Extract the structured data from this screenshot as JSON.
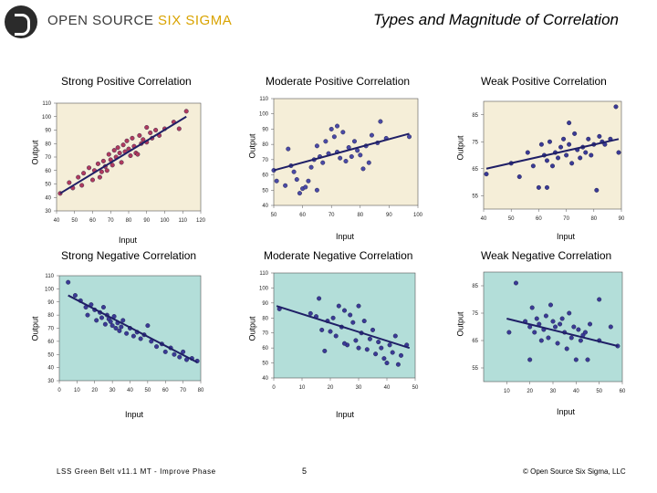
{
  "header": {
    "logo_text": "OPEN SOURCE",
    "logo_text_highlight": "SIX SIGMA",
    "slide_title": "Types and Magnitude of Correlation"
  },
  "footer": {
    "left": "LSS Green Belt v11.1 MT - Improve Phase",
    "page": "5",
    "right": "© Open Source Six Sigma, LLC"
  },
  "colors": {
    "positive_fill": "#f5eed8",
    "negative_fill": "#b3ded9",
    "line": "#1f1f66",
    "positive_point": "#b03a5e",
    "moderate_point": "#4a4aa6",
    "weak_point": "#3a3a96",
    "negative_point": "#3a3a96"
  },
  "chart_data": [
    {
      "type": "scatter",
      "title": "Strong Positive Correlation",
      "xlabel": "Input",
      "ylabel": "Output",
      "xlim": [
        40,
        120
      ],
      "ylim": [
        30,
        110
      ],
      "xticks": [
        40,
        50,
        60,
        70,
        80,
        90,
        100,
        110,
        120
      ],
      "yticks": [
        30,
        40,
        50,
        60,
        70,
        80,
        90,
        100,
        110
      ],
      "trend": [
        [
          42,
          43
        ],
        [
          112,
          100
        ]
      ],
      "points": [
        [
          42,
          43
        ],
        [
          47,
          51
        ],
        [
          49,
          47
        ],
        [
          52,
          55
        ],
        [
          54,
          49
        ],
        [
          55,
          58
        ],
        [
          58,
          62
        ],
        [
          60,
          53
        ],
        [
          61,
          60
        ],
        [
          63,
          65
        ],
        [
          64,
          55
        ],
        [
          65,
          59
        ],
        [
          66,
          67
        ],
        [
          67,
          63
        ],
        [
          68,
          60
        ],
        [
          69,
          72
        ],
        [
          70,
          68
        ],
        [
          71,
          64
        ],
        [
          72,
          75
        ],
        [
          73,
          70
        ],
        [
          74,
          77
        ],
        [
          75,
          73
        ],
        [
          76,
          66
        ],
        [
          77,
          79
        ],
        [
          78,
          74
        ],
        [
          79,
          82
        ],
        [
          80,
          76
        ],
        [
          81,
          71
        ],
        [
          82,
          84
        ],
        [
          83,
          78
        ],
        [
          84,
          73
        ],
        [
          86,
          86
        ],
        [
          87,
          80
        ],
        [
          88,
          83
        ],
        [
          90,
          81
        ],
        [
          92,
          88
        ],
        [
          93,
          84
        ],
        [
          95,
          90
        ],
        [
          97,
          86
        ],
        [
          100,
          91
        ],
        [
          105,
          96
        ],
        [
          112,
          104
        ],
        [
          108,
          91
        ],
        [
          85,
          72
        ],
        [
          90,
          92
        ]
      ]
    },
    {
      "type": "scatter",
      "title": "Moderate Positive Correlation",
      "xlabel": "Input",
      "ylabel": "Output",
      "xlim": [
        50,
        100
      ],
      "ylim": [
        40,
        110
      ],
      "xticks": [
        50,
        60,
        70,
        80,
        90,
        100
      ],
      "yticks": [
        40,
        50,
        60,
        70,
        80,
        90,
        100,
        110
      ],
      "trend": [
        [
          50,
          63
        ],
        [
          97,
          87
        ]
      ],
      "points": [
        [
          50,
          63
        ],
        [
          51,
          56
        ],
        [
          54,
          53
        ],
        [
          55,
          77
        ],
        [
          56,
          66
        ],
        [
          57,
          62
        ],
        [
          58,
          57
        ],
        [
          59,
          48
        ],
        [
          60,
          51
        ],
        [
          61,
          52
        ],
        [
          62,
          56
        ],
        [
          63,
          65
        ],
        [
          64,
          70
        ],
        [
          65,
          79
        ],
        [
          66,
          72
        ],
        [
          67,
          68
        ],
        [
          68,
          82
        ],
        [
          69,
          74
        ],
        [
          70,
          90
        ],
        [
          71,
          85
        ],
        [
          72,
          75
        ],
        [
          73,
          71
        ],
        [
          74,
          88
        ],
        [
          75,
          69
        ],
        [
          76,
          78
        ],
        [
          77,
          72
        ],
        [
          78,
          82
        ],
        [
          79,
          76
        ],
        [
          80,
          73
        ],
        [
          81,
          64
        ],
        [
          82,
          79
        ],
        [
          83,
          68
        ],
        [
          84,
          86
        ],
        [
          86,
          81
        ],
        [
          87,
          95
        ],
        [
          89,
          84
        ],
        [
          97,
          85
        ],
        [
          65,
          50
        ],
        [
          72,
          92
        ]
      ]
    },
    {
      "type": "scatter",
      "title": "Weak Positive Correlation",
      "xlabel": "Input",
      "ylabel": "Output",
      "xlim": [
        40,
        90
      ],
      "ylim": [
        50,
        90
      ],
      "xticks": [
        40,
        50,
        60,
        70,
        80,
        90
      ],
      "yticks": [
        55,
        65,
        75,
        85
      ],
      "trend": [
        [
          41,
          65
        ],
        [
          89,
          76
        ]
      ],
      "points": [
        [
          41,
          63
        ],
        [
          50,
          67
        ],
        [
          53,
          62
        ],
        [
          56,
          71
        ],
        [
          58,
          66
        ],
        [
          60,
          58
        ],
        [
          61,
          74
        ],
        [
          62,
          70
        ],
        [
          63,
          68
        ],
        [
          64,
          75
        ],
        [
          65,
          66
        ],
        [
          66,
          71
        ],
        [
          67,
          69
        ],
        [
          68,
          73
        ],
        [
          69,
          76
        ],
        [
          70,
          70
        ],
        [
          71,
          74
        ],
        [
          72,
          67
        ],
        [
          73,
          78
        ],
        [
          74,
          72
        ],
        [
          75,
          69
        ],
        [
          76,
          73
        ],
        [
          77,
          71
        ],
        [
          78,
          76
        ],
        [
          79,
          70
        ],
        [
          80,
          74
        ],
        [
          81,
          57
        ],
        [
          82,
          77
        ],
        [
          83,
          75
        ],
        [
          84,
          74
        ],
        [
          86,
          76
        ],
        [
          89,
          71
        ],
        [
          88,
          88
        ],
        [
          63,
          58
        ],
        [
          71,
          82
        ]
      ]
    },
    {
      "type": "scatter",
      "title": "Strong Negative Correlation",
      "xlabel": "Input",
      "ylabel": "Output",
      "xlim": [
        0,
        80
      ],
      "ylim": [
        30,
        110
      ],
      "xticks": [
        0,
        10,
        20,
        30,
        40,
        50,
        60,
        70,
        80
      ],
      "yticks": [
        30,
        40,
        50,
        60,
        70,
        80,
        90,
        100,
        110
      ],
      "trend": [
        [
          5,
          95
        ],
        [
          78,
          44
        ]
      ],
      "points": [
        [
          5,
          105
        ],
        [
          9,
          95
        ],
        [
          12,
          91
        ],
        [
          15,
          86
        ],
        [
          16,
          80
        ],
        [
          18,
          88
        ],
        [
          20,
          84
        ],
        [
          21,
          76
        ],
        [
          23,
          82
        ],
        [
          24,
          78
        ],
        [
          25,
          86
        ],
        [
          26,
          73
        ],
        [
          27,
          80
        ],
        [
          28,
          77
        ],
        [
          29,
          75
        ],
        [
          30,
          72
        ],
        [
          31,
          79
        ],
        [
          32,
          70
        ],
        [
          33,
          74
        ],
        [
          34,
          68
        ],
        [
          35,
          71
        ],
        [
          36,
          76
        ],
        [
          38,
          66
        ],
        [
          40,
          70
        ],
        [
          42,
          64
        ],
        [
          44,
          67
        ],
        [
          46,
          62
        ],
        [
          48,
          65
        ],
        [
          50,
          72
        ],
        [
          52,
          60
        ],
        [
          55,
          56
        ],
        [
          58,
          58
        ],
        [
          60,
          52
        ],
        [
          63,
          55
        ],
        [
          65,
          50
        ],
        [
          70,
          52
        ],
        [
          72,
          46
        ],
        [
          75,
          47
        ],
        [
          78,
          45
        ],
        [
          68,
          48
        ]
      ]
    },
    {
      "type": "scatter",
      "title": "Moderate Negative Correlation",
      "xlabel": "Input",
      "ylabel": "Output",
      "xlim": [
        0,
        50
      ],
      "ylim": [
        40,
        110
      ],
      "xticks": [
        0,
        10,
        20,
        30,
        40,
        50
      ],
      "yticks": [
        40,
        50,
        60,
        70,
        80,
        90,
        100,
        110
      ],
      "trend": [
        [
          1,
          88
        ],
        [
          48,
          60
        ]
      ],
      "points": [
        [
          2,
          86
        ],
        [
          13,
          83
        ],
        [
          15,
          81
        ],
        [
          16,
          93
        ],
        [
          17,
          72
        ],
        [
          18,
          58
        ],
        [
          19,
          78
        ],
        [
          20,
          71
        ],
        [
          21,
          80
        ],
        [
          22,
          68
        ],
        [
          23,
          88
        ],
        [
          24,
          74
        ],
        [
          25,
          85
        ],
        [
          26,
          62
        ],
        [
          27,
          82
        ],
        [
          28,
          77
        ],
        [
          29,
          65
        ],
        [
          30,
          88
        ],
        [
          31,
          70
        ],
        [
          32,
          78
        ],
        [
          33,
          59
        ],
        [
          34,
          66
        ],
        [
          35,
          72
        ],
        [
          36,
          56
        ],
        [
          37,
          64
        ],
        [
          38,
          60
        ],
        [
          39,
          53
        ],
        [
          40,
          50
        ],
        [
          41,
          62
        ],
        [
          42,
          57
        ],
        [
          43,
          68
        ],
        [
          44,
          49
        ],
        [
          45,
          55
        ],
        [
          47,
          62
        ],
        [
          25,
          63
        ],
        [
          30,
          60
        ]
      ]
    },
    {
      "type": "scatter",
      "title": "Weak Negative Correlation",
      "xlabel": "Input",
      "ylabel": "Output",
      "xlim": [
        0,
        60
      ],
      "ylim": [
        50,
        90
      ],
      "xticks": [
        10,
        20,
        30,
        40,
        50,
        60
      ],
      "yticks": [
        55,
        65,
        75,
        85
      ],
      "trend": [
        [
          10,
          73
        ],
        [
          58,
          63
        ]
      ],
      "points": [
        [
          11,
          68
        ],
        [
          14,
          86
        ],
        [
          18,
          72
        ],
        [
          20,
          70
        ],
        [
          21,
          77
        ],
        [
          22,
          68
        ],
        [
          23,
          73
        ],
        [
          24,
          71
        ],
        [
          25,
          65
        ],
        [
          26,
          69
        ],
        [
          27,
          74
        ],
        [
          28,
          66
        ],
        [
          29,
          78
        ],
        [
          30,
          72
        ],
        [
          31,
          70
        ],
        [
          32,
          64
        ],
        [
          33,
          71
        ],
        [
          34,
          73
        ],
        [
          35,
          68
        ],
        [
          36,
          62
        ],
        [
          37,
          75
        ],
        [
          38,
          66
        ],
        [
          39,
          70
        ],
        [
          40,
          58
        ],
        [
          41,
          69
        ],
        [
          42,
          65
        ],
        [
          43,
          67
        ],
        [
          44,
          68
        ],
        [
          46,
          71
        ],
        [
          50,
          65
        ],
        [
          55,
          70
        ],
        [
          58,
          63
        ],
        [
          20,
          58
        ],
        [
          45,
          58
        ],
        [
          50,
          80
        ]
      ]
    }
  ]
}
